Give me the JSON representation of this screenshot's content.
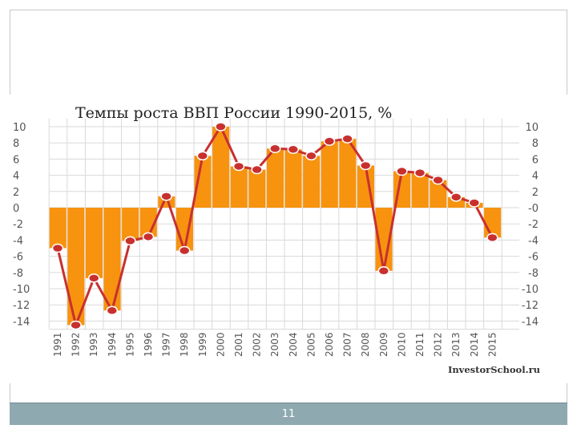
{
  "slide": {
    "page_number": "11",
    "source": "InvestorSchool.ru"
  },
  "colors": {
    "bar": "#f7930f",
    "line": "#c8302e",
    "marker": "#c8302e",
    "grid": "#d9d9d9",
    "axis_text": "#555555",
    "title": "#222222",
    "footer": "#8fa9b0"
  },
  "chart_data": {
    "type": "bar",
    "title": "Темпы роста ВВП России 1990-2015, %",
    "xlabel": "",
    "ylabel": "",
    "ylim": [
      -14,
      10
    ],
    "grid": true,
    "categories": [
      "1991",
      "1992",
      "1993",
      "1994",
      "1995",
      "1996",
      "1997",
      "1998",
      "1999",
      "2000",
      "2001",
      "2002",
      "2003",
      "2004",
      "2005",
      "2006",
      "2007",
      "2008",
      "2009",
      "2010",
      "2011",
      "2012",
      "2013",
      "2014",
      "2015"
    ],
    "values": [
      -5,
      -14.5,
      -8.7,
      -12.7,
      -4.1,
      -3.6,
      1.4,
      -5.3,
      6.4,
      10,
      5.1,
      4.7,
      7.3,
      7.2,
      6.4,
      8.2,
      8.5,
      5.2,
      -7.8,
      4.5,
      4.3,
      3.4,
      1.3,
      0.6,
      -3.7
    ],
    "y_ticks_left": [
      "10",
      "8",
      "6",
      "4",
      "2",
      "0",
      "-2",
      "-4",
      "-6",
      "-8",
      "-10",
      "-12",
      "-14"
    ],
    "y_ticks_right": [
      "10",
      "8",
      "6",
      "4",
      "2",
      "-0",
      "-2",
      "-4",
      "-6",
      "-8",
      "-10",
      "-12",
      "-14"
    ],
    "y_tick_values": [
      10,
      8,
      6,
      4,
      2,
      0,
      -2,
      -4,
      -6,
      -8,
      -10,
      -12,
      -14
    ],
    "series": [
      {
        "kind": "bar"
      },
      {
        "kind": "line"
      }
    ]
  }
}
